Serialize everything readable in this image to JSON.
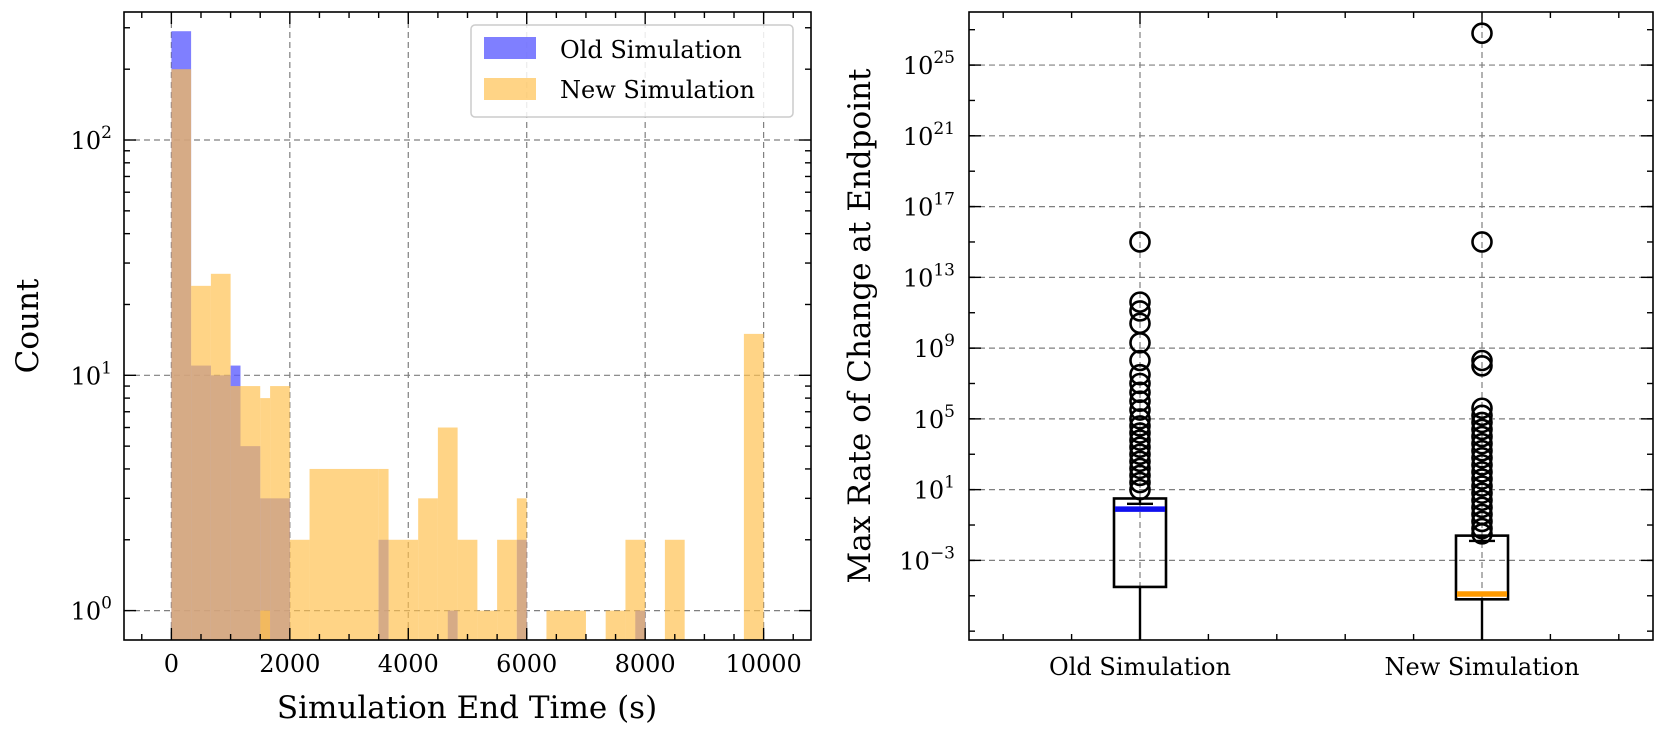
{
  "chart_data": [
    {
      "type": "histogram",
      "xlabel": "Simulation End Time (s)",
      "ylabel": "Count",
      "yscale": "log",
      "xlim": [
        -800,
        10800
      ],
      "ylim": [
        0.75,
        350
      ],
      "xticks": [
        0,
        2000,
        4000,
        6000,
        8000,
        10000
      ],
      "yticks": [
        {
          "value": 1,
          "base": "10",
          "exp": "0"
        },
        {
          "value": 10,
          "base": "10",
          "exp": "1"
        },
        {
          "value": 100,
          "base": "10",
          "exp": "2"
        }
      ],
      "grid": true,
      "legend": "top-right",
      "series": [
        {
          "name": "Old Simulation",
          "color": "#5b5bff",
          "bins": [
            [
              0,
              333,
              290
            ],
            [
              333,
              667,
              11
            ],
            [
              667,
              1000,
              10
            ],
            [
              1000,
              1167,
              11
            ],
            [
              1167,
              1500,
              5
            ],
            [
              1500,
              1667,
              3
            ],
            [
              1667,
              2000,
              3
            ],
            [
              3500,
              3667,
              2
            ],
            [
              4667,
              4833,
              1
            ],
            [
              5833,
              6000,
              2
            ],
            [
              7833,
              8000,
              1
            ]
          ]
        },
        {
          "name": "New Simulation",
          "color": "#ffc04d",
          "bins": [
            [
              0,
              333,
              200
            ],
            [
              333,
              667,
              24
            ],
            [
              667,
              1000,
              27
            ],
            [
              1000,
              1500,
              9
            ],
            [
              1500,
              1667,
              8
            ],
            [
              1667,
              2000,
              9
            ],
            [
              1500,
              1667,
              1
            ],
            [
              2000,
              2333,
              2
            ],
            [
              2333,
              3500,
              4
            ],
            [
              3500,
              3667,
              4
            ],
            [
              3667,
              4167,
              2
            ],
            [
              4167,
              4500,
              3
            ],
            [
              4500,
              4833,
              6
            ],
            [
              4833,
              5167,
              2
            ],
            [
              5167,
              5500,
              1
            ],
            [
              5500,
              5833,
              2
            ],
            [
              5833,
              6000,
              3
            ],
            [
              6333,
              7000,
              1
            ],
            [
              7333,
              7667,
              1
            ],
            [
              7667,
              8000,
              2
            ],
            [
              8333,
              8667,
              2
            ],
            [
              9667,
              10000,
              15
            ]
          ]
        }
      ]
    },
    {
      "type": "box",
      "xlabel": "",
      "ylabel": "Max Rate of Change at Endpoint",
      "yscale": "log",
      "ylog_range": [
        -7.5,
        28
      ],
      "yticks": [
        {
          "exp_value": -3,
          "base": "10",
          "exp": "−3"
        },
        {
          "exp_value": 1,
          "base": "10",
          "exp": "1"
        },
        {
          "exp_value": 5,
          "base": "10",
          "exp": "5"
        },
        {
          "exp_value": 9,
          "base": "10",
          "exp": "9"
        },
        {
          "exp_value": 13,
          "base": "10",
          "exp": "13"
        },
        {
          "exp_value": 17,
          "base": "10",
          "exp": "17"
        },
        {
          "exp_value": 21,
          "base": "10",
          "exp": "21"
        },
        {
          "exp_value": 25,
          "base": "10",
          "exp": "25"
        }
      ],
      "grid": true,
      "categories": [
        "Old Simulation",
        "New Simulation"
      ],
      "boxes": [
        {
          "category": "Old Simulation",
          "median_color": "#1010ee",
          "log10_whisker_low": -7.5,
          "log10_q1": -4.5,
          "log10_median": -0.1,
          "log10_q3": 0.5,
          "log10_whisker_high": 0.2,
          "log10_outliers": [
            15,
            11.6,
            11.1,
            10.4,
            9.3,
            8.3,
            7.5,
            7.0,
            6.5,
            6.0,
            5.5,
            5.0,
            4.6,
            4.2,
            3.8,
            3.4,
            3.0,
            2.6,
            2.2,
            1.8,
            1.4,
            1.0
          ]
        },
        {
          "category": "New Simulation",
          "median_color": "#ff9a00",
          "log10_whisker_low": -7.5,
          "log10_q1": -5.2,
          "log10_median": -4.9,
          "log10_q3": -1.6,
          "log10_whisker_high": -1.9,
          "log10_outliers": [
            26.8,
            15,
            8.3,
            8.0,
            5.6,
            5.2,
            4.8,
            4.4,
            4.0,
            3.6,
            3.2,
            2.8,
            2.4,
            2.0,
            1.6,
            1.2,
            0.8,
            0.4,
            0.0,
            -0.4,
            -0.8,
            -1.2,
            -1.5
          ]
        }
      ]
    }
  ]
}
